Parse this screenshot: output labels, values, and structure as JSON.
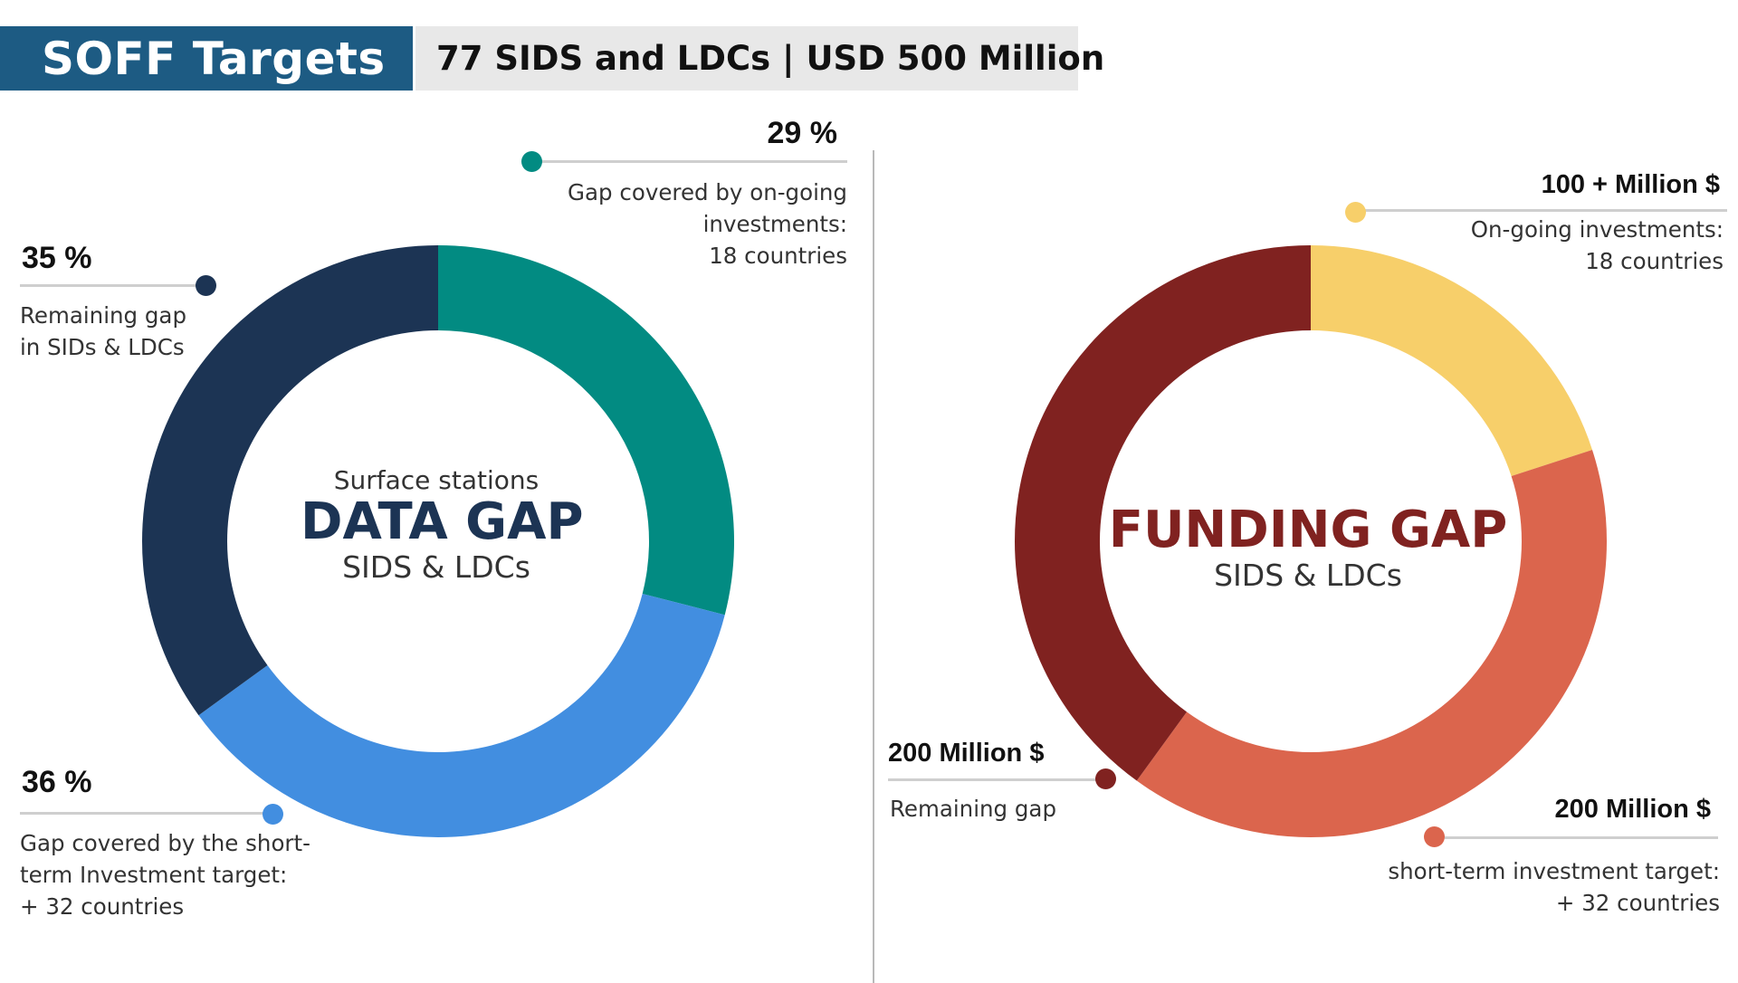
{
  "header": {
    "title": "SOFF Targets",
    "subtitle": "77 SIDS and LDCs | USD 500 Million"
  },
  "colors": {
    "header_bg": "#1d5b83",
    "subtitle_bg": "#e8e8e8",
    "data_gap_title": "#1c3454",
    "funding_gap_title": "#802220",
    "callout_line": "#cfcfcf",
    "divider": "#b9b9b9"
  },
  "data_gap": {
    "center_small": "Surface stations",
    "center_title": "DATA GAP",
    "center_sub": "SIDS & LDCs",
    "callouts": {
      "ongoing": {
        "value": "29 %",
        "desc1": "Gap covered by on-going",
        "desc2": "investments:",
        "desc3": "18 countries"
      },
      "remaining": {
        "value": "35 %",
        "desc1": "Remaining gap",
        "desc2": "in SIDs & LDCs"
      },
      "short_term": {
        "value": "36 %",
        "desc1": "Gap covered by the short-",
        "desc2": "term Investment target:",
        "desc3": "+ 32 countries"
      }
    }
  },
  "funding_gap": {
    "center_title": "FUNDING GAP",
    "center_sub": "SIDS & LDCs",
    "callouts": {
      "ongoing": {
        "value": "100 + Million $",
        "desc1": "On-going investments:",
        "desc2": "18 countries"
      },
      "remaining": {
        "value": "200 Million $",
        "desc1": "Remaining gap"
      },
      "short_term": {
        "value": "200 Million $",
        "desc1": "short-term investment target:",
        "desc2": "+ 32 countries"
      }
    }
  },
  "chart_data": [
    {
      "type": "pie",
      "title": "DATA GAP",
      "subtitle": "SIDS & LDCs",
      "categories": [
        "Gap covered by on-going investments",
        "Gap covered by the short-term Investment target",
        "Remaining gap in SIDs & LDCs"
      ],
      "values": [
        29,
        36,
        35
      ],
      "unit": "%",
      "colors": [
        "#028b82",
        "#428ee0",
        "#1c3454"
      ],
      "donut": true
    },
    {
      "type": "pie",
      "title": "FUNDING GAP",
      "subtitle": "SIDS & LDCs",
      "categories": [
        "On-going investments",
        "short-term investment target",
        "Remaining gap"
      ],
      "values": [
        100,
        200,
        200
      ],
      "unit": "Million $",
      "colors": [
        "#f7cf6a",
        "#db654d",
        "#802220"
      ],
      "donut": true
    }
  ]
}
